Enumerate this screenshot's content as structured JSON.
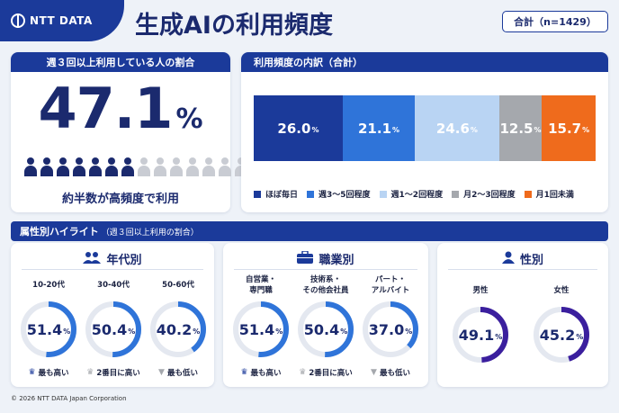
{
  "logo": {
    "text": "NTT DATA"
  },
  "title": "生成AIの利用頻度",
  "total_badge": "合計（n=1429）",
  "rate_card": {
    "header": "週３回以上利用している人の割合",
    "value": "47.1",
    "unit": "%",
    "caption": "約半数が高頻度で利用",
    "people_filled": 7,
    "people_total": 14,
    "filled_color": "#1b2a6e",
    "empty_color": "#c9ccd3"
  },
  "breakdown_card": {
    "header": "利用頻度の内訳（合計）"
  },
  "chart_data": [
    {
      "type": "bar",
      "orientation": "horizontal-stacked",
      "title": "利用頻度の内訳（合計）",
      "unit": "%",
      "series": [
        {
          "name": "ほぼ毎日",
          "value": 26.0,
          "label": "26.0",
          "color": "#1b3a9a",
          "text_color": "#ffffff"
        },
        {
          "name": "週3～5回程度",
          "value": 21.1,
          "label": "21.1",
          "color": "#2f74d9",
          "text_color": "#ffffff"
        },
        {
          "name": "週1～2回程度",
          "value": 24.6,
          "label": "24.6",
          "color": "#b9d4f3",
          "text_color": "#ffffff"
        },
        {
          "name": "月2～3回程度",
          "value": 12.5,
          "label": "12.5",
          "color": "#a5a8ad",
          "text_color": "#ffffff"
        },
        {
          "name": "月1回未満",
          "value": 15.7,
          "label": "15.7",
          "color": "#ef6b1c",
          "text_color": "#ffffff"
        }
      ]
    },
    {
      "type": "pie",
      "variant": "donut",
      "title": "年代別",
      "unit": "%",
      "categories": [
        "10-20代",
        "30-40代",
        "50-60代"
      ],
      "values": [
        51.4,
        50.4,
        40.2
      ],
      "labels": [
        "51.4",
        "50.4",
        "40.2"
      ],
      "ranks": [
        "最も高い",
        "2番目に高い",
        "最も低い"
      ]
    },
    {
      "type": "pie",
      "variant": "donut",
      "title": "職業別",
      "unit": "%",
      "categories": [
        "自営業・専門職",
        "技術系・その他会社員",
        "パート・アルバイト"
      ],
      "category_lines": [
        [
          "自営業・",
          "専門職"
        ],
        [
          "技術系・",
          "その他会社員"
        ],
        [
          "パート・",
          "アルバイト"
        ]
      ],
      "values": [
        51.4,
        50.4,
        37.0
      ],
      "labels": [
        "51.4",
        "50.4",
        "37.0"
      ],
      "ranks": [
        "最も高い",
        "2番目に高い",
        "最も低い"
      ]
    },
    {
      "type": "pie",
      "variant": "donut",
      "title": "性別",
      "unit": "%",
      "categories": [
        "男性",
        "女性"
      ],
      "values": [
        49.1,
        45.2
      ],
      "labels": [
        "49.1",
        "45.2"
      ]
    }
  ],
  "highlight": {
    "header": "属性別ハイライト",
    "subheader": "（週３回以上利用の割合）"
  },
  "colors": {
    "brand": "#1b3a9a",
    "ring_blue": "#2f74d9",
    "ring_purple": "#3b1f9e",
    "ring_track": "#e4e8f0",
    "rank_gold": "#1b3a9a",
    "rank_silver": "#a5a8ad"
  },
  "icons": {
    "age": "people-icon",
    "job": "briefcase-icon",
    "gender": "person-icon",
    "rank_top": "crown-icon",
    "rank_second": "crown-icon",
    "rank_low": "down-triangle-icon"
  },
  "footer": "© 2026 NTT DATA Japan Corporation"
}
